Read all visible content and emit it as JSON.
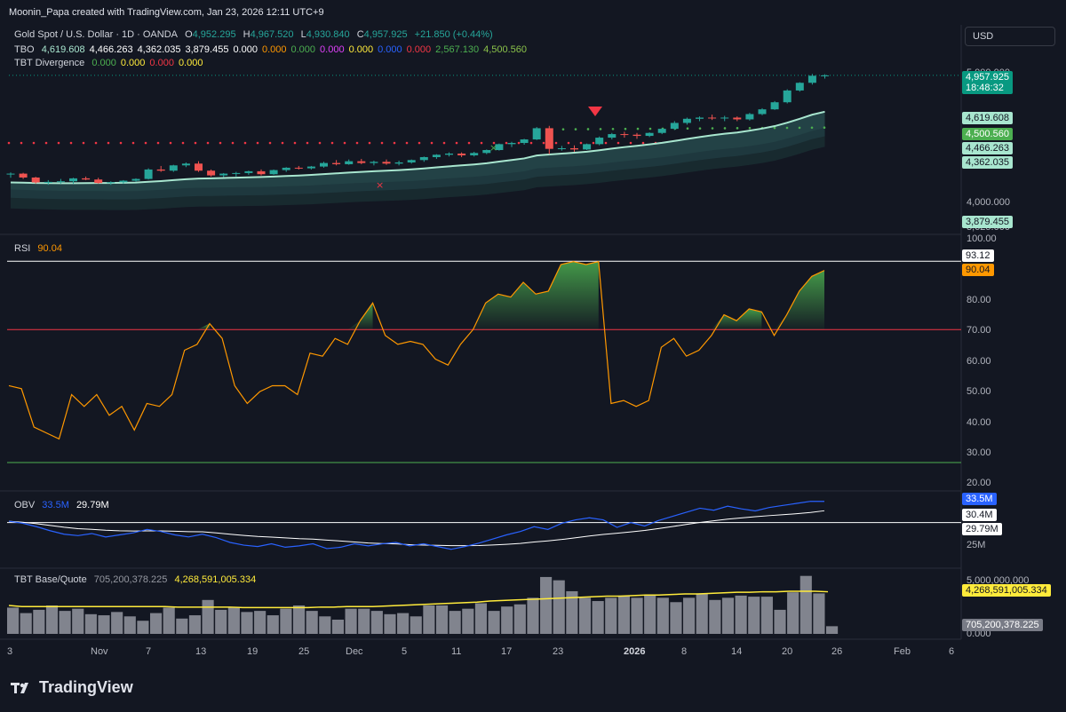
{
  "header": {
    "credit": "Moonin_Papa created with TradingView.com, Jan 23, 2026 12:11 UTC+9",
    "currency_button": "USD"
  },
  "main_legend": {
    "symbol": "Gold Spot / U.S. Dollar · 1D · OANDA",
    "o_label": "O",
    "o_value": "4,952.295",
    "h_label": "H",
    "h_value": "4,967.520",
    "l_label": "L",
    "l_value": "4,930.840",
    "c_label": "C",
    "c_value": "4,957.925",
    "change": "+21.850 (+0.44%)"
  },
  "tbo_legend": {
    "name": "TBO",
    "values": [
      {
        "text": "4,619.608",
        "color": "#a8e6cf"
      },
      {
        "text": "4,466.263",
        "color": "#ffffff"
      },
      {
        "text": "4,362.035",
        "color": "#ffffff"
      },
      {
        "text": "3,879.455",
        "color": "#ffffff"
      },
      {
        "text": "0.000",
        "color": "#ffffff"
      },
      {
        "text": "0.000",
        "color": "#ff9800"
      },
      {
        "text": "0.000",
        "color": "#4caf50"
      },
      {
        "text": "0.000",
        "color": "#e040fb"
      },
      {
        "text": "0.000",
        "color": "#ffeb3b"
      },
      {
        "text": "0.000",
        "color": "#2962ff"
      },
      {
        "text": "0.000",
        "color": "#f23645"
      },
      {
        "text": "2,567.130",
        "color": "#4caf50"
      },
      {
        "text": "4,500.560",
        "color": "#8bc34a"
      }
    ]
  },
  "tbt_div_legend": {
    "name": "TBT Divergence",
    "values": [
      {
        "text": "0.000",
        "color": "#4caf50"
      },
      {
        "text": "0.000",
        "color": "#ffeb3b"
      },
      {
        "text": "0.000",
        "color": "#f23645"
      },
      {
        "text": "0.000",
        "color": "#ffeb3b"
      }
    ]
  },
  "rsi_legend": {
    "name": "RSI",
    "value": "90.04"
  },
  "obv_legend": {
    "name": "OBV",
    "value1": "33.5M",
    "value2": "29.79M"
  },
  "tbt_bq_legend": {
    "name": "TBT Base/Quote",
    "value1": "705,200,378.225",
    "value2": "4,268,591,005.334"
  },
  "main_axis": {
    "labels": [
      "5,000.000",
      "4,000.000",
      "3,625.000"
    ],
    "tags": [
      {
        "text": "4,957.925",
        "sub": "18:48:32",
        "bg": "#089981",
        "fg": "#ffffff"
      },
      {
        "text": "4,619.608",
        "bg": "#a8e6cf",
        "fg": "#131722"
      },
      {
        "text": "4,500.560",
        "bg": "#4caf50",
        "fg": "#ffffff"
      },
      {
        "text": "4,466.263",
        "bg": "#a8e6cf",
        "fg": "#131722"
      },
      {
        "text": "4,362.035",
        "bg": "#a8e6cf",
        "fg": "#131722"
      },
      {
        "text": "3,879.455",
        "bg": "#a8e6cf",
        "fg": "#131722"
      }
    ]
  },
  "rsi_axis": {
    "labels": [
      "100.00",
      "80.00",
      "70.00",
      "60.00",
      "50.00",
      "40.00",
      "30.00",
      "20.00"
    ],
    "tags": [
      {
        "text": "93.12",
        "bg": "#ffffff",
        "fg": "#131722"
      },
      {
        "text": "90.04",
        "bg": "#ff9800",
        "fg": "#131722"
      }
    ]
  },
  "obv_axis": {
    "labels": [
      "25M"
    ],
    "tags": [
      {
        "text": "33.5M",
        "bg": "#2962ff",
        "fg": "#ffffff"
      },
      {
        "text": "30.4M",
        "bg": "#ffffff",
        "fg": "#131722"
      },
      {
        "text": "29.79M",
        "bg": "#ffffff",
        "fg": "#131722"
      }
    ]
  },
  "bq_axis": {
    "labels": [
      "5,000,000,000",
      "0.000"
    ],
    "tags": [
      {
        "text": "4,268,591,005.334",
        "bg": "#ffeb3b",
        "fg": "#131722"
      },
      {
        "text": "705,200,378.225",
        "bg": "#787b86",
        "fg": "#ffffff"
      }
    ]
  },
  "x_axis_labels": [
    {
      "text": "3",
      "bold": false
    },
    {
      "text": "Nov",
      "bold": false
    },
    {
      "text": "7",
      "bold": false
    },
    {
      "text": "13",
      "bold": false
    },
    {
      "text": "19",
      "bold": false
    },
    {
      "text": "25",
      "bold": false
    },
    {
      "text": "Dec",
      "bold": false
    },
    {
      "text": "5",
      "bold": false
    },
    {
      "text": "11",
      "bold": false
    },
    {
      "text": "17",
      "bold": false
    },
    {
      "text": "23",
      "bold": false
    },
    {
      "text": "2026",
      "bold": true
    },
    {
      "text": "8",
      "bold": false
    },
    {
      "text": "14",
      "bold": false
    },
    {
      "text": "20",
      "bold": false
    },
    {
      "text": "26",
      "bold": false
    },
    {
      "text": "Feb",
      "bold": false
    },
    {
      "text": "6",
      "bold": false
    }
  ],
  "brand": {
    "name": "TradingView"
  },
  "colors": {
    "up": "#26a69a",
    "down": "#ef5350",
    "rsi": "#ff9800",
    "obv": "#2962ff",
    "bg": "#131722"
  },
  "chart_data": {
    "type": "candlestick",
    "candles": [
      [
        4118,
        4135,
        4090,
        4125
      ],
      [
        4125,
        4132,
        4080,
        4092
      ],
      [
        4092,
        4098,
        4040,
        4050
      ],
      [
        4050,
        4070,
        4030,
        4055
      ],
      [
        4055,
        4080,
        4040,
        4060
      ],
      [
        4060,
        4090,
        4040,
        4085
      ],
      [
        4085,
        4100,
        4070,
        4075
      ],
      [
        4075,
        4090,
        4040,
        4045
      ],
      [
        4045,
        4060,
        4030,
        4052
      ],
      [
        4052,
        4070,
        4040,
        4065
      ],
      [
        4065,
        4085,
        4055,
        4080
      ],
      [
        4080,
        4170,
        4075,
        4160
      ],
      [
        4160,
        4190,
        4140,
        4150
      ],
      [
        4150,
        4200,
        4140,
        4195
      ],
      [
        4195,
        4220,
        4180,
        4210
      ],
      [
        4210,
        4230,
        4140,
        4150
      ],
      [
        4150,
        4160,
        4100,
        4110
      ],
      [
        4110,
        4130,
        4095,
        4125
      ],
      [
        4125,
        4140,
        4100,
        4130
      ],
      [
        4130,
        4150,
        4115,
        4145
      ],
      [
        4145,
        4160,
        4110,
        4120
      ],
      [
        4120,
        4160,
        4115,
        4155
      ],
      [
        4155,
        4180,
        4140,
        4175
      ],
      [
        4175,
        4190,
        4160,
        4170
      ],
      [
        4170,
        4190,
        4160,
        4185
      ],
      [
        4185,
        4225,
        4175,
        4215
      ],
      [
        4215,
        4240,
        4195,
        4205
      ],
      [
        4205,
        4245,
        4200,
        4230
      ],
      [
        4230,
        4250,
        4205,
        4215
      ],
      [
        4215,
        4235,
        4195,
        4225
      ],
      [
        4225,
        4245,
        4200,
        4210
      ],
      [
        4210,
        4235,
        4195,
        4220
      ],
      [
        4220,
        4245,
        4210,
        4240
      ],
      [
        4240,
        4270,
        4225,
        4265
      ],
      [
        4265,
        4290,
        4250,
        4285
      ],
      [
        4285,
        4305,
        4270,
        4295
      ],
      [
        4295,
        4305,
        4265,
        4280
      ],
      [
        4280,
        4310,
        4270,
        4300
      ],
      [
        4300,
        4330,
        4290,
        4325
      ],
      [
        4325,
        4380,
        4320,
        4375
      ],
      [
        4375,
        4395,
        4350,
        4385
      ],
      [
        4385,
        4420,
        4370,
        4415
      ],
      [
        4415,
        4520,
        4410,
        4510
      ],
      [
        4510,
        4530,
        4290,
        4335
      ],
      [
        4335,
        4360,
        4320,
        4340
      ],
      [
        4340,
        4365,
        4310,
        4330
      ],
      [
        4330,
        4380,
        4325,
        4375
      ],
      [
        4375,
        4440,
        4365,
        4430
      ],
      [
        4430,
        4470,
        4415,
        4460
      ],
      [
        4460,
        4480,
        4430,
        4455
      ],
      [
        4455,
        4470,
        4420,
        4445
      ],
      [
        4445,
        4475,
        4435,
        4470
      ],
      [
        4470,
        4510,
        4460,
        4505
      ],
      [
        4505,
        4570,
        4495,
        4555
      ],
      [
        4555,
        4600,
        4540,
        4590
      ],
      [
        4590,
        4610,
        4570,
        4600
      ],
      [
        4600,
        4625,
        4580,
        4595
      ],
      [
        4595,
        4615,
        4570,
        4600
      ],
      [
        4600,
        4610,
        4570,
        4585
      ],
      [
        4585,
        4640,
        4575,
        4630
      ],
      [
        4630,
        4680,
        4620,
        4670
      ],
      [
        4670,
        4740,
        4665,
        4730
      ],
      [
        4730,
        4840,
        4720,
        4830
      ],
      [
        4830,
        4900,
        4820,
        4895
      ],
      [
        4895,
        4970,
        4880,
        4955
      ],
      [
        4952,
        4968,
        4931,
        4958
      ]
    ],
    "ema_fast": [
      4050,
      4048,
      4046,
      4045,
      4044,
      4044,
      4045,
      4046,
      4046,
      4047,
      4049,
      4056,
      4062,
      4070,
      4078,
      4083,
      4085,
      4088,
      4091,
      4094,
      4096,
      4100,
      4105,
      4109,
      4114,
      4121,
      4127,
      4134,
      4140,
      4145,
      4150,
      4155,
      4161,
      4169,
      4178,
      4187,
      4195,
      4203,
      4213,
      4227,
      4240,
      4254,
      4279,
      4287,
      4295,
      4302,
      4311,
      4323,
      4337,
      4350,
      4361,
      4373,
      4386,
      4402,
      4419,
      4435,
      4450,
      4463,
      4474,
      4490,
      4507,
      4528,
      4557,
      4590,
      4625,
      4650
    ],
    "rsi": [
      51,
      50,
      37,
      35,
      33,
      48,
      44,
      48,
      41,
      44,
      36,
      45,
      44,
      48,
      63,
      65,
      72,
      67,
      51,
      45,
      49,
      51,
      51,
      48,
      62,
      61,
      67,
      65,
      73,
      79,
      68,
      65,
      66,
      65,
      60,
      58,
      65,
      70,
      79,
      82,
      81,
      86,
      82,
      83,
      92,
      93,
      92,
      93,
      45,
      46,
      44,
      46,
      64,
      67,
      61,
      63,
      68,
      75,
      73,
      77,
      76,
      68,
      75,
      83,
      88,
      90
    ],
    "rsi_levels": {
      "overbought": 70,
      "oversold": 25
    },
    "obv": [
      30.6,
      30.3,
      29.8,
      29.2,
      28.7,
      28.5,
      28.8,
      28.3,
      28.6,
      28.9,
      29.4,
      29.1,
      28.6,
      28.3,
      28.7,
      28.2,
      27.5,
      27.1,
      26.9,
      27.3,
      26.8,
      27.0,
      27.3,
      26.6,
      26.8,
      27.3,
      27.0,
      27.3,
      27.5,
      27.0,
      27.3,
      26.9,
      26.5,
      26.9,
      27.4,
      28.0,
      28.6,
      29.1,
      29.8,
      29.4,
      30.3,
      30.8,
      31.1,
      30.8,
      29.7,
      30.4,
      29.9,
      30.7,
      31.3,
      31.9,
      32.5,
      32.2,
      32.8,
      32.4,
      32.1,
      32.6,
      32.9,
      33.2,
      33.5,
      33.5
    ],
    "volume": [
      2.4,
      1.9,
      2.2,
      2.6,
      2.1,
      2.3,
      1.8,
      1.7,
      2.0,
      1.6,
      1.2,
      1.9,
      2.4,
      1.4,
      1.7,
      3.1,
      2.2,
      2.4,
      2.0,
      2.1,
      1.7,
      2.3,
      2.6,
      2.1,
      1.6,
      1.3,
      2.3,
      2.3,
      2.1,
      1.8,
      1.9,
      1.6,
      2.6,
      2.6,
      2.1,
      2.3,
      2.8,
      2.1,
      2.5,
      2.7,
      3.3,
      5.2,
      4.9,
      3.9,
      3.3,
      3.0,
      3.3,
      3.5,
      3.3,
      3.6,
      3.3,
      2.9,
      3.3,
      3.7,
      3.1,
      3.3,
      3.5,
      3.4,
      3.4,
      2.2,
      3.8,
      5.3,
      3.7,
      0.7
    ],
    "volume_ma": [
      2.6,
      2.5,
      2.5,
      2.5,
      2.5,
      2.5,
      2.5,
      2.5,
      2.5,
      2.5,
      2.5,
      2.5,
      2.5,
      2.45,
      2.45,
      2.45,
      2.45,
      2.45,
      2.4,
      2.4,
      2.4,
      2.4,
      2.4,
      2.4,
      2.45,
      2.45,
      2.5,
      2.5,
      2.5,
      2.55,
      2.6,
      2.65,
      2.7,
      2.75,
      2.8,
      2.85,
      2.9,
      3.0,
      3.05,
      3.1,
      3.15,
      3.2,
      3.25,
      3.3,
      3.35,
      3.4,
      3.45,
      3.45,
      3.5,
      3.55,
      3.55,
      3.6,
      3.65,
      3.65,
      3.7,
      3.75,
      3.8,
      3.8,
      3.85,
      3.85,
      3.9,
      3.9,
      3.9,
      3.85
    ]
  }
}
